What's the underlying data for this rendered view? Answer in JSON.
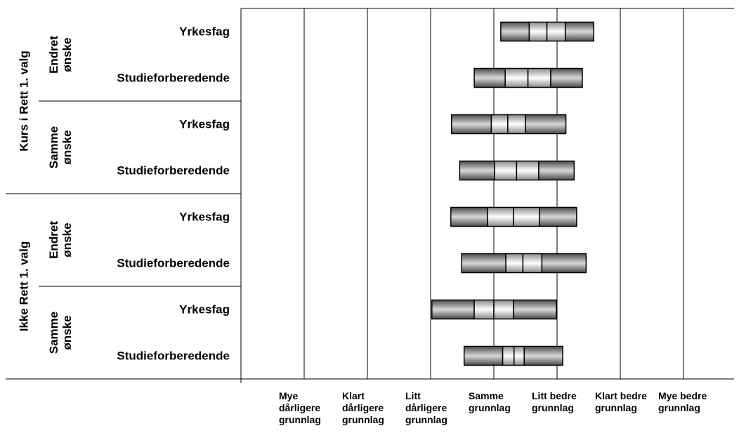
{
  "chart_data": {
    "type": "boxplot",
    "xlim": [
      0,
      7.8
    ],
    "xticks": [
      {
        "value": 1,
        "label": "Mye dårligere grunnlag"
      },
      {
        "value": 2,
        "label": "Klart dårligere grunnlag"
      },
      {
        "value": 3,
        "label": "Litt dårligere grunnlag"
      },
      {
        "value": 4,
        "label": "Samme grunnlag"
      },
      {
        "value": 5,
        "label": "Litt bedre grunnlag"
      },
      {
        "value": 6,
        "label": "Klart bedre grunnlag"
      },
      {
        "value": 7,
        "label": "Mye bedre grunnlag"
      }
    ],
    "grid": true,
    "groups": [
      {
        "label": "Kurs i Rett 1. valg",
        "subgroups": [
          {
            "label": "Endret ønske",
            "rows": [
              {
                "label": "Yrkesfag",
                "min": 4.11,
                "q1": 4.56,
                "median": 4.84,
                "q3": 5.13,
                "max": 5.58
              },
              {
                "label": "Studieforberedende",
                "min": 3.69,
                "q1": 4.18,
                "median": 4.54,
                "q3": 4.9,
                "max": 5.4
              }
            ]
          },
          {
            "label": "Samme ønske",
            "rows": [
              {
                "label": "Yrkesfag",
                "min": 3.33,
                "q1": 3.96,
                "median": 4.22,
                "q3": 4.5,
                "max": 5.14
              },
              {
                "label": "Studieforberedende",
                "min": 3.46,
                "q1": 4.01,
                "median": 4.36,
                "q3": 4.71,
                "max": 5.27
              }
            ]
          }
        ]
      },
      {
        "label": "Ikke Rett 1. valg",
        "subgroups": [
          {
            "label": "Endret ønske",
            "rows": [
              {
                "label": "Yrkesfag",
                "min": 3.32,
                "q1": 3.9,
                "median": 4.31,
                "q3": 4.72,
                "max": 5.31
              },
              {
                "label": "Studieforberedende",
                "min": 3.49,
                "q1": 4.19,
                "median": 4.46,
                "q3": 4.76,
                "max": 5.46
              }
            ]
          },
          {
            "label": "Samme ønske",
            "rows": [
              {
                "label": "Yrkesfag",
                "min": 3.02,
                "q1": 3.69,
                "median": 4.0,
                "q3": 4.31,
                "max": 4.99
              },
              {
                "label": "Studieforberedende",
                "min": 3.53,
                "q1": 4.14,
                "median": 4.32,
                "q3": 4.48,
                "max": 5.09
              }
            ]
          }
        ]
      }
    ]
  }
}
